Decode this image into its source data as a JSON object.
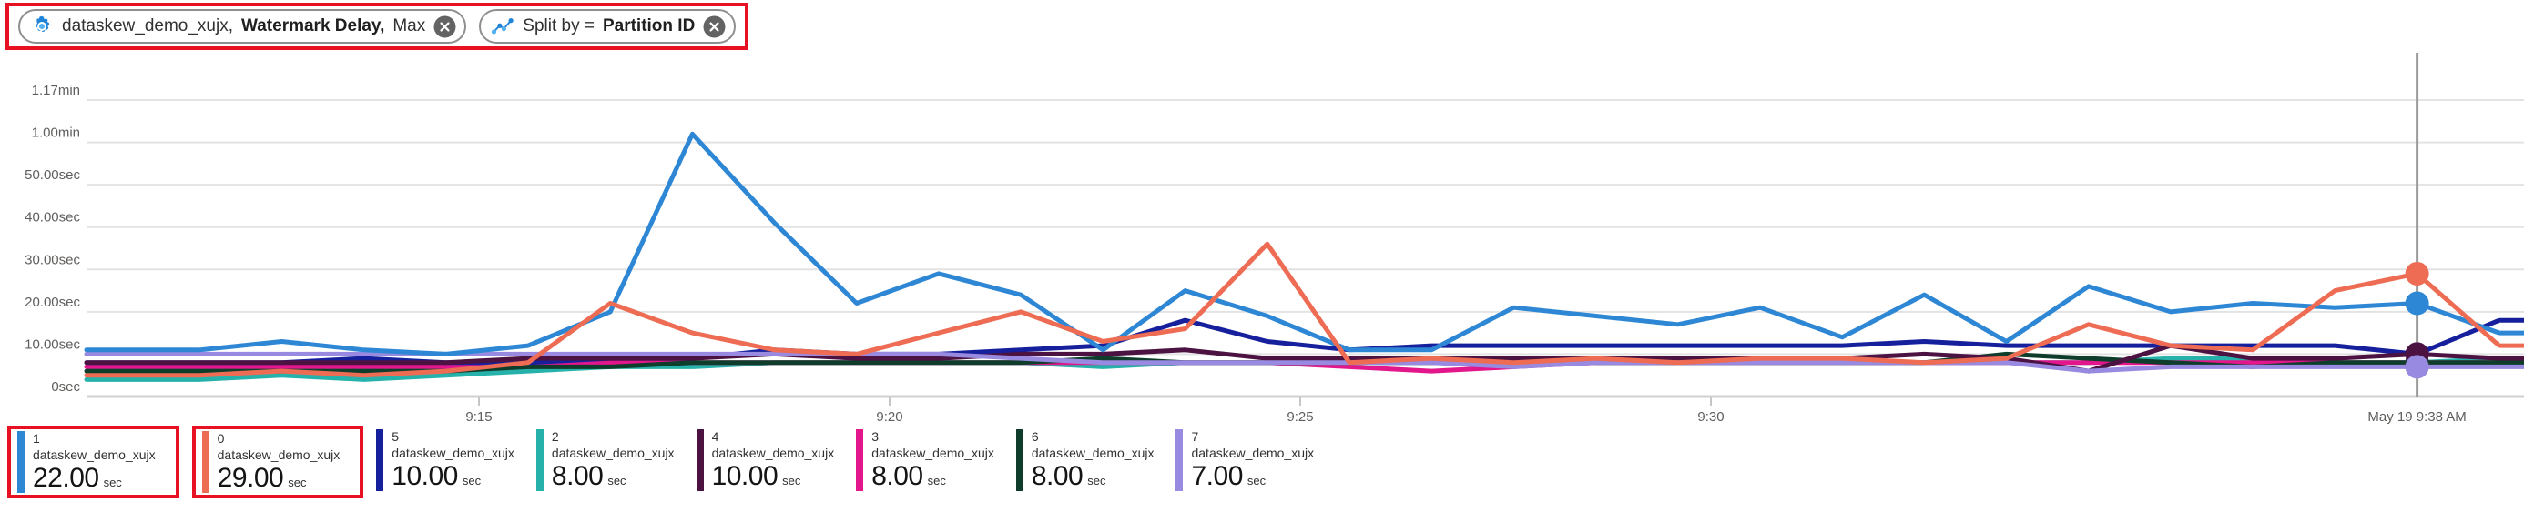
{
  "pills": {
    "metric": {
      "resource": "dataskew_demo_xujx,",
      "metric_name": "Watermark Delay,",
      "aggregation": "Max"
    },
    "split": {
      "label": "Split by =",
      "value": "Partition ID"
    }
  },
  "chart_data": {
    "type": "line",
    "title": "",
    "xlabel": "",
    "ylabel": "",
    "ylim": [
      0,
      70
    ],
    "grid": true,
    "x": [
      "9:10",
      "9:11",
      "9:12",
      "9:13",
      "9:14",
      "9:15",
      "9:16",
      "9:17",
      "9:18",
      "9:19",
      "9:20",
      "9:21",
      "9:22",
      "9:23",
      "9:24",
      "9:25",
      "9:26",
      "9:27",
      "9:28",
      "9:29",
      "9:30",
      "9:31",
      "9:32",
      "9:33",
      "9:34",
      "9:35",
      "9:36",
      "9:37",
      "9:38",
      "9:39"
    ],
    "x_ticks": [
      {
        "label": "9:15",
        "index": 5
      },
      {
        "label": "9:20",
        "index": 10
      },
      {
        "label": "9:25",
        "index": 15
      },
      {
        "label": "9:30",
        "index": 20
      }
    ],
    "y_ticks": [
      {
        "label": "1.17min",
        "value": 70
      },
      {
        "label": "1.00min",
        "value": 60
      },
      {
        "label": "50.00sec",
        "value": 50
      },
      {
        "label": "40.00sec",
        "value": 40
      },
      {
        "label": "30.00sec",
        "value": 30
      },
      {
        "label": "20.00sec",
        "value": 20
      },
      {
        "label": "10.00sec",
        "value": 10
      },
      {
        "label": "0sec",
        "value": 0
      }
    ],
    "cursor": {
      "index": 28,
      "label": "May 19 9:38 AM"
    },
    "unit": "sec",
    "series": [
      {
        "partition": "0",
        "color": "#ed6c53",
        "values": [
          5,
          5,
          6,
          5,
          6,
          8,
          22,
          15,
          11,
          10,
          15,
          20,
          13,
          16,
          36,
          8,
          9,
          8,
          9,
          8,
          9,
          9,
          8,
          9,
          17,
          12,
          11,
          25,
          29,
          12
        ]
      },
      {
        "partition": "1",
        "color": "#2e87d4",
        "values": [
          11,
          11,
          13,
          11,
          10,
          12,
          20,
          62,
          41,
          22,
          29,
          24,
          11,
          25,
          19,
          11,
          11,
          21,
          19,
          17,
          21,
          14,
          24,
          13,
          26,
          20,
          22,
          21,
          22,
          15
        ]
      },
      {
        "partition": "2",
        "color": "#26b2aa",
        "values": [
          4,
          4,
          5,
          4,
          5,
          6,
          7,
          7,
          8,
          8,
          8,
          8,
          7,
          8,
          8,
          8,
          9,
          8,
          8,
          8,
          9,
          8,
          8,
          8,
          8,
          9,
          9,
          8,
          8,
          9
        ]
      },
      {
        "partition": "3",
        "color": "#e3168c",
        "values": [
          7,
          7,
          7,
          7,
          7,
          7,
          8,
          8,
          8,
          8,
          8,
          8,
          8,
          8,
          8,
          7,
          6,
          7,
          8,
          8,
          8,
          8,
          8,
          8,
          8,
          8,
          8,
          8,
          8,
          8
        ]
      },
      {
        "partition": "4",
        "color": "#4b1242",
        "values": [
          8,
          8,
          8,
          8,
          8,
          9,
          9,
          9,
          10,
          9,
          9,
          10,
          10,
          11,
          9,
          9,
          9,
          9,
          9,
          9,
          9,
          9,
          10,
          9,
          6,
          12,
          9,
          9,
          10,
          9
        ]
      },
      {
        "partition": "5",
        "color": "#16209c",
        "values": [
          8,
          8,
          8,
          9,
          8,
          8,
          9,
          9,
          11,
          10,
          10,
          11,
          12,
          18,
          13,
          11,
          12,
          12,
          12,
          12,
          12,
          12,
          13,
          12,
          12,
          12,
          12,
          12,
          10,
          18
        ]
      },
      {
        "partition": "6",
        "color": "#0f3d2b",
        "values": [
          6,
          6,
          6,
          6,
          6,
          7,
          7,
          8,
          8,
          8,
          8,
          8,
          9,
          8,
          8,
          8,
          8,
          8,
          8,
          8,
          8,
          8,
          8,
          10,
          9,
          8,
          7,
          8,
          8,
          8
        ]
      },
      {
        "partition": "7",
        "color": "#988ae0",
        "values": [
          10,
          10,
          10,
          10,
          10,
          10,
          10,
          10,
          10,
          10,
          10,
          9,
          8,
          8,
          8,
          8,
          8,
          7,
          8,
          8,
          8,
          8,
          8,
          8,
          6,
          7,
          7,
          7,
          7,
          7
        ]
      }
    ],
    "draw_order": [
      "2",
      "3",
      "6",
      "5",
      "4",
      "7",
      "1",
      "0"
    ],
    "legend_position": "bottom"
  },
  "legend": {
    "resource": "dataskew_demo_xujx",
    "unit": "sec",
    "items": [
      {
        "partition": "1",
        "value": "22.00",
        "color": "#2e87d4",
        "highlighted": true
      },
      {
        "partition": "0",
        "value": "29.00",
        "color": "#ed6c53",
        "highlighted": true
      },
      {
        "partition": "5",
        "value": "10.00",
        "color": "#16209c",
        "highlighted": false
      },
      {
        "partition": "2",
        "value": "8.00",
        "color": "#26b2aa",
        "highlighted": false
      },
      {
        "partition": "4",
        "value": "10.00",
        "color": "#4b1242",
        "highlighted": false
      },
      {
        "partition": "3",
        "value": "8.00",
        "color": "#e3168c",
        "highlighted": false
      },
      {
        "partition": "6",
        "value": "8.00",
        "color": "#0f3d2b",
        "highlighted": false
      },
      {
        "partition": "7",
        "value": "7.00",
        "color": "#988ae0",
        "highlighted": false
      }
    ]
  },
  "annotation": {
    "color": "#e81123"
  }
}
